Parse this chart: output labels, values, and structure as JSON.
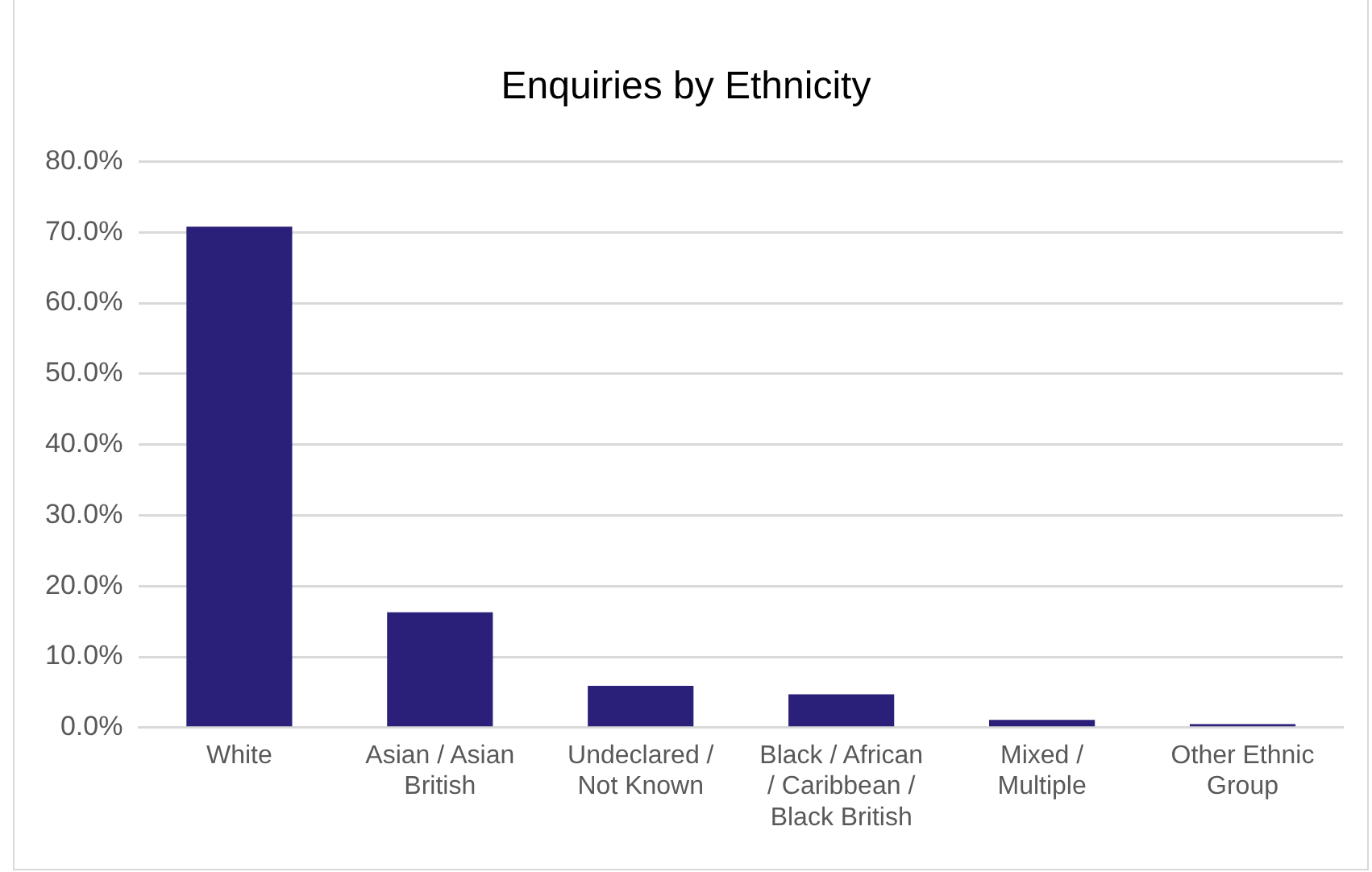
{
  "chart_data": {
    "type": "bar",
    "title": "Enquiries by Ethnicity",
    "categories": [
      "White",
      "Asian / Asian British",
      "Undeclared / Not Known",
      "Black / African / Caribbean / Black British",
      "Mixed / Multiple",
      "Other Ethnic Group"
    ],
    "values": [
      70.8,
      16.3,
      5.9,
      4.7,
      1.1,
      0.5
    ],
    "color": "#2a207a",
    "ylim": [
      0,
      80
    ],
    "yticks": [
      {
        "value": 0,
        "label": "0.0%"
      },
      {
        "value": 10,
        "label": "10.0%"
      },
      {
        "value": 20,
        "label": "20.0%"
      },
      {
        "value": 30,
        "label": "30.0%"
      },
      {
        "value": 40,
        "label": "40.0%"
      },
      {
        "value": 50,
        "label": "50.0%"
      },
      {
        "value": 60,
        "label": "60.0%"
      },
      {
        "value": 70,
        "label": "70.0%"
      },
      {
        "value": 80,
        "label": "80.0%"
      }
    ],
    "grid": "y",
    "legend": false
  }
}
